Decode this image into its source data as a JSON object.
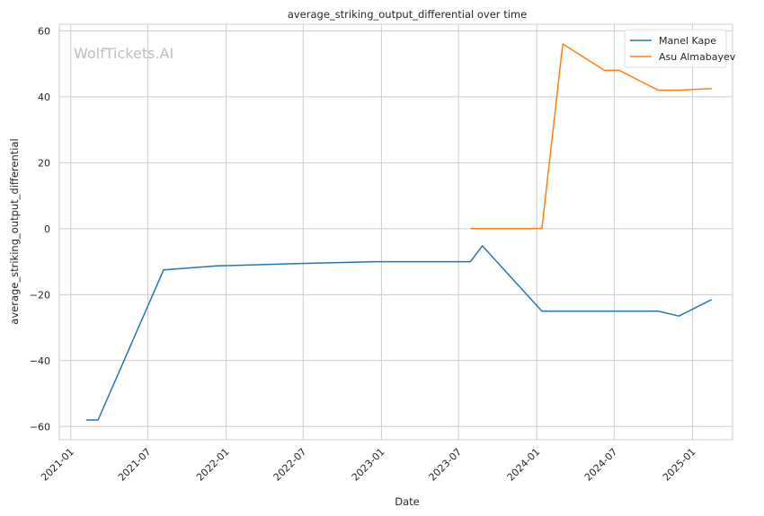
{
  "chart_data": {
    "type": "line",
    "title": "average_striking_output_differential over time",
    "xlabel": "Date",
    "ylabel": "average_striking_output_differential",
    "watermark": "WolfTickets.AI",
    "x_ticks": [
      "2021-01",
      "2021-07",
      "2022-01",
      "2022-07",
      "2023-01",
      "2023-07",
      "2024-01",
      "2024-07",
      "2025-01"
    ],
    "xlim": [
      "2020-12-05",
      "2025-04-05"
    ],
    "y_ticks": [
      -60,
      -40,
      -20,
      0,
      20,
      40,
      60
    ],
    "ylim": [
      -64,
      62
    ],
    "grid": true,
    "legend_position": "top-right",
    "series": [
      {
        "name": "Manel Kape",
        "color": "#1f77b4",
        "points": [
          {
            "x": "2021-02-06",
            "y": -58
          },
          {
            "x": "2021-03-06",
            "y": -58
          },
          {
            "x": "2021-08-07",
            "y": -12.5
          },
          {
            "x": "2021-12-11",
            "y": -11.3
          },
          {
            "x": "2022-06-15",
            "y": -10.6
          },
          {
            "x": "2022-12-17",
            "y": -10
          },
          {
            "x": "2023-07-29",
            "y": -10
          },
          {
            "x": "2023-08-26",
            "y": -5.2
          },
          {
            "x": "2024-01-13",
            "y": -25
          },
          {
            "x": "2024-10-12",
            "y": -25
          },
          {
            "x": "2024-11-30",
            "y": -26.5
          },
          {
            "x": "2025-02-15",
            "y": -21.5
          }
        ]
      },
      {
        "name": "Asu Almabayev",
        "color": "#ff7f0e",
        "points": [
          {
            "x": "2023-07-29",
            "y": 0
          },
          {
            "x": "2024-01-13",
            "y": 0
          },
          {
            "x": "2024-03-02",
            "y": 56
          },
          {
            "x": "2024-06-08",
            "y": 48
          },
          {
            "x": "2024-07-13",
            "y": 48
          },
          {
            "x": "2024-10-12",
            "y": 42
          },
          {
            "x": "2024-11-30",
            "y": 42
          },
          {
            "x": "2025-02-15",
            "y": 42.5
          }
        ]
      }
    ]
  }
}
